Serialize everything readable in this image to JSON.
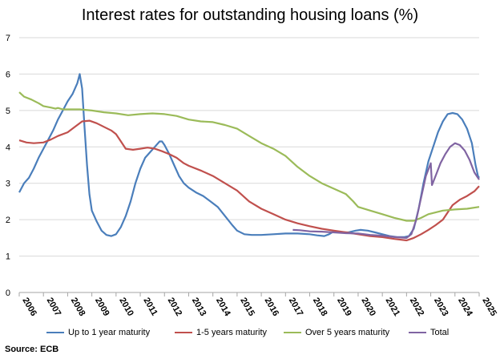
{
  "chart_data": {
    "type": "line",
    "title": "Interest rates for outstanding housing loans (%)",
    "xlabel": "",
    "ylabel": "",
    "x_tick_labels": [
      "2006",
      "2007",
      "2008",
      "2009",
      "2010",
      "2011",
      "2012",
      "2013",
      "2014",
      "2015",
      "2016",
      "2017",
      "2018",
      "2019",
      "2020",
      "2021",
      "2022",
      "2023",
      "2024",
      "2025"
    ],
    "xlim": [
      2006,
      2025
    ],
    "y_tick_labels": [
      "0",
      "1",
      "2",
      "3",
      "4",
      "5",
      "6",
      "7"
    ],
    "ylim": [
      0,
      7
    ],
    "grid": "horizontal",
    "legend": "bottom",
    "source": "Source: ECB",
    "series": [
      {
        "name": "Up to 1 year maturity",
        "color": "#4a7ebb",
        "points": [
          [
            2006.0,
            2.75
          ],
          [
            2006.2,
            3.0
          ],
          [
            2006.4,
            3.15
          ],
          [
            2006.6,
            3.4
          ],
          [
            2006.8,
            3.7
          ],
          [
            2007.0,
            3.95
          ],
          [
            2007.2,
            4.2
          ],
          [
            2007.4,
            4.45
          ],
          [
            2007.6,
            4.75
          ],
          [
            2007.8,
            5.0
          ],
          [
            2008.0,
            5.25
          ],
          [
            2008.2,
            5.45
          ],
          [
            2008.4,
            5.75
          ],
          [
            2008.5,
            6.0
          ],
          [
            2008.6,
            5.6
          ],
          [
            2008.7,
            4.5
          ],
          [
            2008.8,
            3.5
          ],
          [
            2008.9,
            2.7
          ],
          [
            2009.0,
            2.25
          ],
          [
            2009.2,
            1.95
          ],
          [
            2009.4,
            1.7
          ],
          [
            2009.6,
            1.58
          ],
          [
            2009.8,
            1.55
          ],
          [
            2010.0,
            1.6
          ],
          [
            2010.2,
            1.8
          ],
          [
            2010.4,
            2.1
          ],
          [
            2010.6,
            2.5
          ],
          [
            2010.8,
            3.0
          ],
          [
            2011.0,
            3.4
          ],
          [
            2011.2,
            3.7
          ],
          [
            2011.4,
            3.85
          ],
          [
            2011.6,
            4.0
          ],
          [
            2011.8,
            4.15
          ],
          [
            2011.9,
            4.15
          ],
          [
            2012.0,
            4.05
          ],
          [
            2012.2,
            3.8
          ],
          [
            2012.4,
            3.5
          ],
          [
            2012.6,
            3.2
          ],
          [
            2012.8,
            3.0
          ],
          [
            2013.0,
            2.88
          ],
          [
            2013.3,
            2.75
          ],
          [
            2013.6,
            2.65
          ],
          [
            2013.9,
            2.5
          ],
          [
            2014.2,
            2.35
          ],
          [
            2014.5,
            2.1
          ],
          [
            2014.8,
            1.85
          ],
          [
            2015.0,
            1.7
          ],
          [
            2015.3,
            1.6
          ],
          [
            2015.6,
            1.58
          ],
          [
            2016.0,
            1.58
          ],
          [
            2016.5,
            1.6
          ],
          [
            2017.0,
            1.62
          ],
          [
            2017.5,
            1.62
          ],
          [
            2018.0,
            1.6
          ],
          [
            2018.3,
            1.57
          ],
          [
            2018.6,
            1.55
          ],
          [
            2018.8,
            1.6
          ],
          [
            2019.0,
            1.68
          ],
          [
            2019.3,
            1.65
          ],
          [
            2019.6,
            1.65
          ],
          [
            2019.9,
            1.7
          ],
          [
            2020.1,
            1.72
          ],
          [
            2020.4,
            1.7
          ],
          [
            2020.7,
            1.65
          ],
          [
            2021.0,
            1.6
          ],
          [
            2021.3,
            1.55
          ],
          [
            2021.6,
            1.52
          ],
          [
            2021.9,
            1.52
          ],
          [
            2022.1,
            1.55
          ],
          [
            2022.3,
            1.75
          ],
          [
            2022.5,
            2.3
          ],
          [
            2022.7,
            3.0
          ],
          [
            2022.9,
            3.6
          ],
          [
            2023.1,
            4.0
          ],
          [
            2023.3,
            4.4
          ],
          [
            2023.5,
            4.7
          ],
          [
            2023.7,
            4.9
          ],
          [
            2023.9,
            4.93
          ],
          [
            2024.1,
            4.9
          ],
          [
            2024.3,
            4.75
          ],
          [
            2024.5,
            4.5
          ],
          [
            2024.7,
            4.1
          ],
          [
            2024.85,
            3.5
          ],
          [
            2024.95,
            3.2
          ],
          [
            2025.0,
            3.15
          ]
        ]
      },
      {
        "name": "1-5 years maturity",
        "color": "#c0504d",
        "points": [
          [
            2006.0,
            4.18
          ],
          [
            2006.3,
            4.12
          ],
          [
            2006.6,
            4.1
          ],
          [
            2007.0,
            4.12
          ],
          [
            2007.3,
            4.2
          ],
          [
            2007.6,
            4.3
          ],
          [
            2008.0,
            4.4
          ],
          [
            2008.3,
            4.55
          ],
          [
            2008.6,
            4.7
          ],
          [
            2008.9,
            4.72
          ],
          [
            2009.2,
            4.65
          ],
          [
            2009.5,
            4.55
          ],
          [
            2009.8,
            4.45
          ],
          [
            2010.0,
            4.35
          ],
          [
            2010.2,
            4.15
          ],
          [
            2010.4,
            3.95
          ],
          [
            2010.7,
            3.92
          ],
          [
            2011.0,
            3.95
          ],
          [
            2011.3,
            3.98
          ],
          [
            2011.6,
            3.95
          ],
          [
            2011.9,
            3.88
          ],
          [
            2012.2,
            3.8
          ],
          [
            2012.5,
            3.7
          ],
          [
            2012.8,
            3.55
          ],
          [
            2013.0,
            3.48
          ],
          [
            2013.5,
            3.35
          ],
          [
            2014.0,
            3.2
          ],
          [
            2014.5,
            3.0
          ],
          [
            2015.0,
            2.8
          ],
          [
            2015.5,
            2.5
          ],
          [
            2016.0,
            2.3
          ],
          [
            2016.5,
            2.15
          ],
          [
            2017.0,
            2.0
          ],
          [
            2017.5,
            1.9
          ],
          [
            2018.0,
            1.82
          ],
          [
            2018.5,
            1.75
          ],
          [
            2019.0,
            1.7
          ],
          [
            2019.5,
            1.65
          ],
          [
            2020.0,
            1.6
          ],
          [
            2020.5,
            1.55
          ],
          [
            2021.0,
            1.52
          ],
          [
            2021.5,
            1.47
          ],
          [
            2022.0,
            1.43
          ],
          [
            2022.3,
            1.5
          ],
          [
            2022.6,
            1.6
          ],
          [
            2022.9,
            1.72
          ],
          [
            2023.2,
            1.85
          ],
          [
            2023.5,
            2.0
          ],
          [
            2023.7,
            2.2
          ],
          [
            2023.9,
            2.4
          ],
          [
            2024.2,
            2.55
          ],
          [
            2024.5,
            2.65
          ],
          [
            2024.8,
            2.78
          ],
          [
            2025.0,
            2.92
          ]
        ]
      },
      {
        "name": "Over 5 years maturity",
        "color": "#9bbb59",
        "points": [
          [
            2006.0,
            5.5
          ],
          [
            2006.2,
            5.38
          ],
          [
            2006.5,
            5.3
          ],
          [
            2006.8,
            5.2
          ],
          [
            2007.0,
            5.12
          ],
          [
            2007.3,
            5.08
          ],
          [
            2007.5,
            5.05
          ],
          [
            2007.6,
            5.07
          ],
          [
            2007.8,
            5.03
          ],
          [
            2008.0,
            5.03
          ],
          [
            2008.5,
            5.03
          ],
          [
            2009.0,
            5.0
          ],
          [
            2009.5,
            4.95
          ],
          [
            2010.0,
            4.92
          ],
          [
            2010.5,
            4.87
          ],
          [
            2011.0,
            4.9
          ],
          [
            2011.5,
            4.92
          ],
          [
            2012.0,
            4.9
          ],
          [
            2012.5,
            4.85
          ],
          [
            2013.0,
            4.75
          ],
          [
            2013.5,
            4.7
          ],
          [
            2014.0,
            4.68
          ],
          [
            2014.5,
            4.6
          ],
          [
            2015.0,
            4.5
          ],
          [
            2015.5,
            4.3
          ],
          [
            2016.0,
            4.1
          ],
          [
            2016.5,
            3.95
          ],
          [
            2017.0,
            3.75
          ],
          [
            2017.5,
            3.45
          ],
          [
            2018.0,
            3.2
          ],
          [
            2018.5,
            3.0
          ],
          [
            2019.0,
            2.85
          ],
          [
            2019.5,
            2.7
          ],
          [
            2019.8,
            2.5
          ],
          [
            2020.0,
            2.35
          ],
          [
            2020.5,
            2.25
          ],
          [
            2021.0,
            2.15
          ],
          [
            2021.5,
            2.05
          ],
          [
            2022.0,
            1.97
          ],
          [
            2022.3,
            1.97
          ],
          [
            2022.6,
            2.05
          ],
          [
            2022.9,
            2.15
          ],
          [
            2023.2,
            2.2
          ],
          [
            2023.5,
            2.25
          ],
          [
            2024.0,
            2.28
          ],
          [
            2024.5,
            2.3
          ],
          [
            2025.0,
            2.35
          ]
        ]
      },
      {
        "name": "Total",
        "color": "#8064a2",
        "points": [
          [
            2017.3,
            1.72
          ],
          [
            2017.6,
            1.71
          ],
          [
            2018.0,
            1.68
          ],
          [
            2018.5,
            1.67
          ],
          [
            2019.0,
            1.65
          ],
          [
            2019.5,
            1.63
          ],
          [
            2020.0,
            1.62
          ],
          [
            2020.5,
            1.58
          ],
          [
            2021.0,
            1.56
          ],
          [
            2021.5,
            1.52
          ],
          [
            2022.0,
            1.5
          ],
          [
            2022.2,
            1.6
          ],
          [
            2022.4,
            2.0
          ],
          [
            2022.6,
            2.6
          ],
          [
            2022.8,
            3.2
          ],
          [
            2023.0,
            3.55
          ],
          [
            2023.05,
            2.95
          ],
          [
            2023.2,
            3.2
          ],
          [
            2023.4,
            3.55
          ],
          [
            2023.6,
            3.8
          ],
          [
            2023.8,
            4.0
          ],
          [
            2024.0,
            4.1
          ],
          [
            2024.2,
            4.05
          ],
          [
            2024.4,
            3.9
          ],
          [
            2024.6,
            3.65
          ],
          [
            2024.8,
            3.3
          ],
          [
            2025.0,
            3.1
          ]
        ]
      }
    ]
  }
}
